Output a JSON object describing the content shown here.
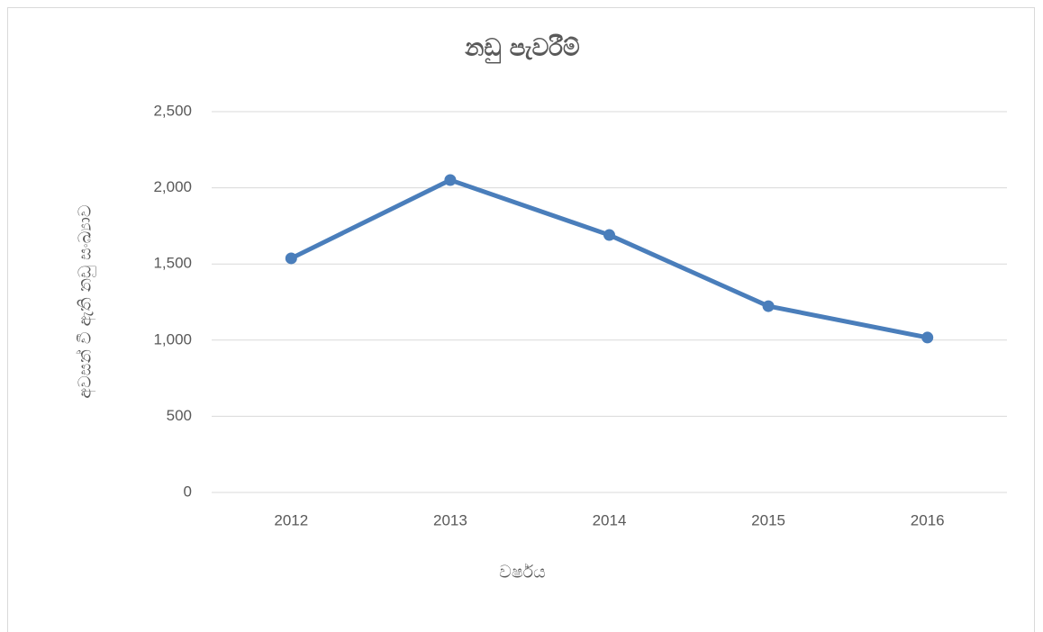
{
  "chart_data": {
    "type": "line",
    "title": "නඩු පැවරීම්",
    "x_label": "වර්ෂය",
    "y_label": "අවසන් වී ඇති නඩු සංඛ්‍යාව",
    "categories": [
      "2012",
      "2013",
      "2014",
      "2015",
      "2016"
    ],
    "series": [
      {
        "name": "නඩු පැවරීම්",
        "color": "#4a7ebb",
        "values": [
          1537,
          2051,
          1690,
          1223,
          1017
        ]
      }
    ],
    "ylim": [
      0,
      2500
    ],
    "yticks": [
      0,
      500,
      {
        "value": 1000,
        "label": "1,000"
      },
      {
        "value": 1500,
        "label": "1,500"
      },
      {
        "value": 2000,
        "label": "2,000"
      },
      {
        "value": 2500,
        "label": "2,500"
      }
    ],
    "grid": true
  }
}
